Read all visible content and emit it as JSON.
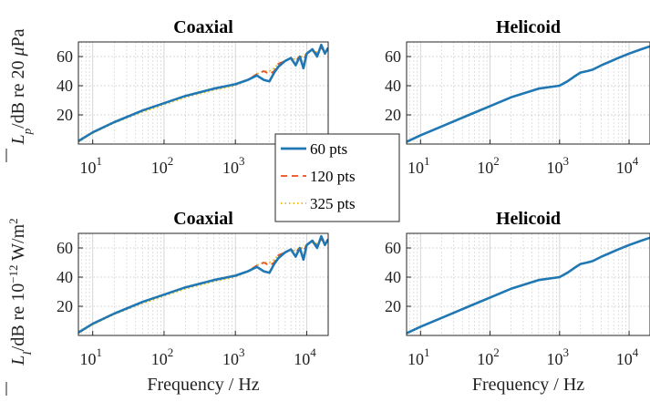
{
  "chart_data": [
    {
      "type": "line",
      "title": "Coaxial",
      "xlabel": "",
      "ylabel_shared": "Lp/dB re 20 µPa",
      "x_scale": "log",
      "xlim": [
        6.3,
        20000
      ],
      "ylim": [
        0,
        70
      ],
      "xticks": [
        10,
        100,
        1000,
        10000
      ],
      "xtick_labels": [
        "10",
        "10",
        "10",
        "10"
      ],
      "xtick_exponents": [
        "1",
        "2",
        "3",
        "4"
      ],
      "yticks": [
        20,
        40,
        60
      ],
      "ytick_labels": [
        "20",
        "40",
        "60"
      ],
      "grid": true,
      "series": [
        {
          "name": "60 pts",
          "x": [
            6.3,
            10,
            20,
            50,
            100,
            200,
            500,
            1000,
            1500,
            2000,
            2500,
            3000,
            3500,
            4000,
            5000,
            6000,
            7000,
            8000,
            9000,
            10000,
            12000,
            14000,
            16000,
            18000,
            20000
          ],
          "values": [
            2,
            8,
            15,
            23,
            28,
            33,
            38,
            41,
            44,
            47,
            44,
            43,
            49,
            53,
            57,
            59,
            54,
            60,
            52,
            62,
            65,
            60,
            68,
            62,
            66
          ]
        },
        {
          "name": "120 pts",
          "x": [
            6.3,
            10,
            20,
            50,
            100,
            200,
            500,
            1000,
            1500,
            2000,
            2500,
            3000,
            3500,
            4000,
            5000,
            6000,
            7000,
            8000,
            9000,
            10000,
            12000,
            14000,
            16000,
            18000,
            20000
          ],
          "values": [
            2,
            8,
            15,
            23,
            28,
            33,
            38,
            41,
            44,
            48,
            50,
            48,
            50,
            55,
            57,
            59,
            57,
            60,
            58,
            62,
            64,
            62,
            66,
            63,
            66
          ]
        },
        {
          "name": "325 pts",
          "x": [
            6.3,
            10,
            20,
            50,
            100,
            200,
            500,
            1000,
            1500,
            2000,
            2500,
            3000,
            3500,
            4000,
            5000,
            6000,
            7000,
            8000,
            9000,
            10000,
            12000,
            14000,
            16000,
            18000,
            20000
          ],
          "values": [
            1.5,
            7.5,
            14.5,
            22,
            27,
            32,
            37,
            40,
            44,
            48,
            50,
            50,
            52,
            55,
            57,
            59,
            58,
            60,
            60,
            62,
            64,
            63,
            65,
            64,
            66
          ]
        }
      ]
    },
    {
      "type": "line",
      "title": "Helicoid",
      "xlabel": "",
      "x_scale": "log",
      "xlim": [
        6.3,
        20000
      ],
      "ylim": [
        0,
        70
      ],
      "xticks": [
        10,
        100,
        1000,
        10000
      ],
      "xtick_labels": [
        "10",
        "10",
        "10",
        "10"
      ],
      "xtick_exponents": [
        "1",
        "2",
        "3",
        "4"
      ],
      "yticks": [
        20,
        40,
        60
      ],
      "ytick_labels": [
        "20",
        "40",
        "60"
      ],
      "grid": true,
      "series": [
        {
          "name": "60 pts",
          "x": [
            6.3,
            10,
            20,
            50,
            100,
            200,
            500,
            1000,
            1300,
            1600,
            2000,
            2500,
            3000,
            4000,
            5000,
            7000,
            10000,
            15000,
            20000
          ],
          "values": [
            1.5,
            6,
            12,
            20,
            26,
            32,
            38,
            40,
            43,
            46,
            49,
            50,
            51,
            54,
            56,
            59,
            62,
            65,
            67
          ]
        },
        {
          "name": "120 pts",
          "x": [
            6.3,
            10,
            20,
            50,
            100,
            200,
            500,
            1000,
            1300,
            1600,
            2000,
            2500,
            3000,
            4000,
            5000,
            7000,
            10000,
            15000,
            20000
          ],
          "values": [
            1.5,
            6,
            12,
            20,
            26,
            32,
            38,
            40,
            43,
            46,
            49,
            50,
            51,
            54,
            56,
            59,
            62,
            65,
            67
          ]
        },
        {
          "name": "325 pts",
          "x": [
            6.3,
            10,
            20,
            50,
            100,
            200,
            500,
            1000,
            1300,
            1600,
            2000,
            2500,
            3000,
            4000,
            5000,
            7000,
            10000,
            15000,
            20000
          ],
          "values": [
            1.5,
            6,
            12,
            20,
            26,
            32,
            38,
            40,
            43,
            46,
            49,
            50,
            51,
            54,
            56,
            59,
            62,
            65,
            67
          ]
        }
      ]
    },
    {
      "type": "line",
      "title": "Coaxial",
      "xlabel": "Frequency / Hz",
      "ylabel_shared": "LI/dB re 10−12 W/m2",
      "x_scale": "log",
      "xlim": [
        6.3,
        20000
      ],
      "ylim": [
        0,
        70
      ],
      "xticks": [
        10,
        100,
        1000,
        10000
      ],
      "xtick_labels": [
        "10",
        "10",
        "10",
        "10"
      ],
      "xtick_exponents": [
        "1",
        "2",
        "3",
        "4"
      ],
      "yticks": [
        20,
        40,
        60
      ],
      "ytick_labels": [
        "20",
        "40",
        "60"
      ],
      "grid": true,
      "series": [
        {
          "name": "60 pts",
          "x": [
            6.3,
            10,
            20,
            50,
            100,
            200,
            500,
            1000,
            1500,
            2000,
            2500,
            3000,
            3500,
            4000,
            5000,
            6000,
            7000,
            8000,
            9000,
            10000,
            12000,
            14000,
            16000,
            18000,
            20000
          ],
          "values": [
            2,
            8,
            15,
            23,
            28,
            33,
            38,
            41,
            44,
            47,
            44,
            43,
            49,
            53,
            57,
            59,
            54,
            60,
            52,
            62,
            65,
            60,
            68,
            62,
            66
          ]
        },
        {
          "name": "120 pts",
          "x": [
            6.3,
            10,
            20,
            50,
            100,
            200,
            500,
            1000,
            1500,
            2000,
            2500,
            3000,
            3500,
            4000,
            5000,
            6000,
            7000,
            8000,
            9000,
            10000,
            12000,
            14000,
            16000,
            18000,
            20000
          ],
          "values": [
            2,
            8,
            15,
            23,
            28,
            33,
            38,
            41,
            44,
            48,
            50,
            48,
            50,
            55,
            57,
            59,
            57,
            60,
            58,
            62,
            64,
            62,
            66,
            63,
            66
          ]
        },
        {
          "name": "325 pts",
          "x": [
            6.3,
            10,
            20,
            50,
            100,
            200,
            500,
            1000,
            1500,
            2000,
            2500,
            3000,
            3500,
            4000,
            5000,
            6000,
            7000,
            8000,
            9000,
            10000,
            12000,
            14000,
            16000,
            18000,
            20000
          ],
          "values": [
            1.5,
            7.5,
            14.5,
            22,
            27,
            32,
            37,
            40,
            44,
            48,
            50,
            50,
            52,
            55,
            57,
            59,
            58,
            60,
            60,
            62,
            64,
            63,
            65,
            64,
            66
          ]
        }
      ]
    },
    {
      "type": "line",
      "title": "Helicoid",
      "xlabel": "Frequency / Hz",
      "x_scale": "log",
      "xlim": [
        6.3,
        20000
      ],
      "ylim": [
        0,
        70
      ],
      "xticks": [
        10,
        100,
        1000,
        10000
      ],
      "xtick_labels": [
        "10",
        "10",
        "10",
        "10"
      ],
      "xtick_exponents": [
        "1",
        "2",
        "3",
        "4"
      ],
      "yticks": [
        20,
        40,
        60
      ],
      "ytick_labels": [
        "20",
        "40",
        "60"
      ],
      "grid": true,
      "series": [
        {
          "name": "60 pts",
          "x": [
            6.3,
            10,
            20,
            50,
            100,
            200,
            500,
            1000,
            1300,
            1600,
            2000,
            2500,
            3000,
            4000,
            5000,
            7000,
            10000,
            15000,
            20000
          ],
          "values": [
            1.5,
            6,
            12,
            20,
            26,
            32,
            38,
            40,
            43,
            46,
            49,
            50,
            51,
            54,
            56,
            59,
            62,
            65,
            67
          ]
        },
        {
          "name": "120 pts",
          "x": [
            6.3,
            10,
            20,
            50,
            100,
            200,
            500,
            1000,
            1300,
            1600,
            2000,
            2500,
            3000,
            4000,
            5000,
            7000,
            10000,
            15000,
            20000
          ],
          "values": [
            1.5,
            6,
            12,
            20,
            26,
            32,
            38,
            40,
            43,
            46,
            49,
            50,
            51,
            54,
            56,
            59,
            62,
            65,
            67
          ]
        },
        {
          "name": "325 pts",
          "x": [
            6.3,
            10,
            20,
            50,
            100,
            200,
            500,
            1000,
            1300,
            1600,
            2000,
            2500,
            3000,
            4000,
            5000,
            7000,
            10000,
            15000,
            20000
          ],
          "values": [
            1.5,
            6,
            12,
            20,
            26,
            32,
            38,
            40,
            43,
            46,
            49,
            50,
            51,
            54,
            56,
            59,
            62,
            65,
            67
          ]
        }
      ]
    }
  ],
  "legend": {
    "placement": "center",
    "entries": [
      "60 pts",
      "120 pts",
      "325 pts"
    ]
  },
  "style": {
    "series_colors": [
      "#1f77b4",
      "#e8501f",
      "#e6b800"
    ],
    "series_dash": [
      "solid",
      "dashed",
      "dotted"
    ],
    "grid_color": "#cccccc"
  }
}
